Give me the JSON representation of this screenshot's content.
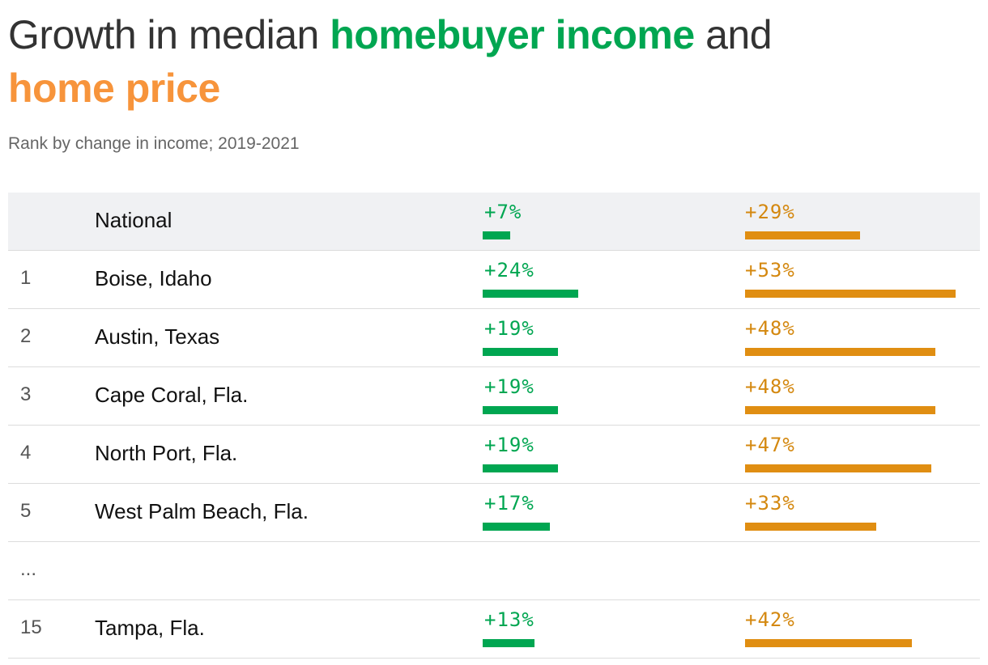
{
  "title": {
    "part1": "Growth in median ",
    "part2": "homebuyer income",
    "part3": " and",
    "part4": "home price"
  },
  "subtitle": "Rank by change in income; 2019-2021",
  "colors": {
    "income": "#00a651",
    "price": "#e08e12"
  },
  "chart_data": {
    "type": "bar",
    "title": "Growth in median homebuyer income and home price",
    "subtitle": "Rank by change in income; 2019-2021",
    "unit": "%",
    "categories": [
      "National",
      "Boise, Idaho",
      "Austin, Texas",
      "Cape Coral, Fla.",
      "North Port, Fla.",
      "West Palm Beach, Fla.",
      "Tampa, Fla."
    ],
    "series": [
      {
        "name": "homebuyer income",
        "values": [
          7,
          24,
          19,
          19,
          19,
          17,
          13
        ]
      },
      {
        "name": "home price",
        "values": [
          29,
          53,
          48,
          48,
          47,
          33,
          42
        ]
      }
    ]
  },
  "rows": [
    {
      "rank": "",
      "name": "National",
      "income_label": "+7%",
      "income": 7,
      "price_label": "+29%",
      "price": 29
    },
    {
      "rank": "1",
      "name": "Boise, Idaho",
      "income_label": "+24%",
      "income": 24,
      "price_label": "+53%",
      "price": 53
    },
    {
      "rank": "2",
      "name": "Austin, Texas",
      "income_label": "+19%",
      "income": 19,
      "price_label": "+48%",
      "price": 48
    },
    {
      "rank": "3",
      "name": "Cape Coral, Fla.",
      "income_label": "+19%",
      "income": 19,
      "price_label": "+48%",
      "price": 48
    },
    {
      "rank": "4",
      "name": "North Port, Fla.",
      "income_label": "+19%",
      "income": 19,
      "price_label": "+47%",
      "price": 47
    },
    {
      "rank": "5",
      "name": "West Palm Beach, Fla.",
      "income_label": "+17%",
      "income": 17,
      "price_label": "+33%",
      "price": 33
    },
    {
      "rank": "...",
      "name": "",
      "income_label": "",
      "income": null,
      "price_label": "",
      "price": null
    },
    {
      "rank": "15",
      "name": "Tampa, Fla.",
      "income_label": "+13%",
      "income": 13,
      "price_label": "+42%",
      "price": 42
    }
  ]
}
